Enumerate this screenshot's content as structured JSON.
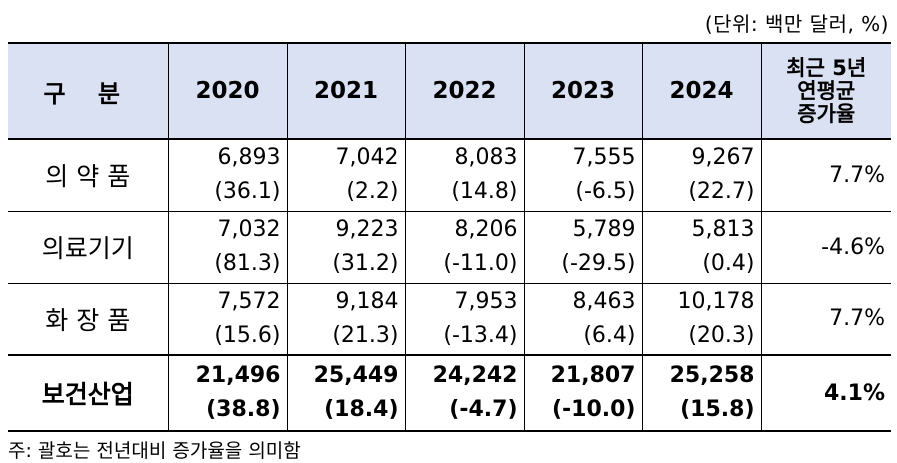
{
  "unit_label": "(단위: 백만 달러, %)",
  "header": {
    "label": "구 분",
    "years": [
      "2020",
      "2021",
      "2022",
      "2023",
      "2024"
    ],
    "cagr": [
      "최근 5년",
      "연평균",
      "증가율"
    ]
  },
  "rows": [
    {
      "name": "의 약 품",
      "values": [
        "6,893",
        "7,042",
        "8,083",
        "7,555",
        "9,267"
      ],
      "growth": [
        "(36.1)",
        "(2.2)",
        "(14.8)",
        "(-6.5)",
        "(22.7)"
      ],
      "cagr": "7.7%"
    },
    {
      "name": "의료기기",
      "values": [
        "7,032",
        "9,223",
        "8,206",
        "5,789",
        "5,813"
      ],
      "growth": [
        "(81.3)",
        "(31.2)",
        "(-11.0)",
        "(-29.5)",
        "(0.4)"
      ],
      "cagr": "-4.6%"
    },
    {
      "name": "화 장 품",
      "values": [
        "7,572",
        "9,184",
        "7,953",
        "8,463",
        "10,178"
      ],
      "growth": [
        "(15.6)",
        "(21.3)",
        "(-13.4)",
        "(6.4)",
        "(20.3)"
      ],
      "cagr": "7.7%"
    },
    {
      "name": "보건산업",
      "values": [
        "21,496",
        "25,449",
        "24,242",
        "21,807",
        "25,258"
      ],
      "growth": [
        "(38.8)",
        "(18.4)",
        "(-4.7)",
        "(-10.0)",
        "(15.8)"
      ],
      "cagr": "4.1%"
    }
  ],
  "note": "주: 괄호는 전년대비 증가율을 의미함"
}
